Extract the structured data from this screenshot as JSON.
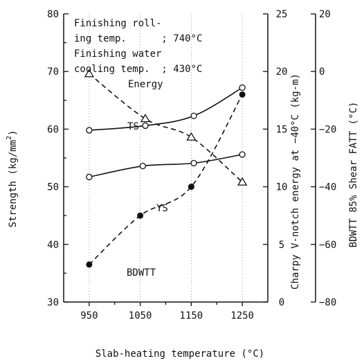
{
  "chart_data": {
    "type": "line",
    "xlabel": "Slab-heating temperature (°C)",
    "x_ticks": [
      "950",
      "1050",
      "1150",
      "1250"
    ],
    "xlim": [
      900,
      1300
    ],
    "left_axis": {
      "label": "Strength (kg/mm",
      "label_sup": "2",
      "label_end": ")",
      "ylim": [
        30,
        80
      ],
      "ticks": [
        "30",
        "40",
        "50",
        "60",
        "70",
        "80"
      ]
    },
    "mid_axis": {
      "label": "Charpy V-notch energy at −40°C (kg-m)",
      "ylim": [
        0,
        25
      ],
      "ticks": [
        "0",
        "5",
        "10",
        "15",
        "20",
        "25"
      ]
    },
    "right_axis": {
      "label": "BDWTT 85% Shear FATT (°C)",
      "ylim": [
        -80,
        20
      ],
      "ticks": [
        "−80",
        "−60",
        "−40",
        "−20",
        "0",
        "20"
      ]
    },
    "annotation": {
      "line1": "Finishing roll-",
      "line2": "ing temp.      ; 740°C",
      "line3": "Finishing water",
      "line4": "cooling temp.  ; 430°C"
    },
    "series": [
      {
        "name": "TS",
        "axis": "strength",
        "style": "solid",
        "marker": "open-circle",
        "x": [
          950,
          1060,
          1155,
          1250
        ],
        "y": [
          59.8,
          60.6,
          62.3,
          67.2
        ]
      },
      {
        "name": "YS",
        "axis": "strength",
        "style": "solid",
        "marker": "open-circle",
        "x": [
          950,
          1055,
          1155,
          1250
        ],
        "y": [
          51.7,
          53.6,
          54.1,
          55.6
        ]
      },
      {
        "name": "Energy",
        "axis": "energy",
        "style": "dashed",
        "marker": "open-triangle",
        "x": [
          950,
          1060,
          1150,
          1250
        ],
        "y": [
          19.8,
          15.9,
          14.3,
          10.4
        ]
      },
      {
        "name": "BDWTT",
        "axis": "fatt",
        "style": "dashed",
        "marker": "filled-circle",
        "x": [
          950,
          1050,
          1150,
          1250
        ],
        "y": [
          -67,
          -50,
          -40,
          -8
        ]
      }
    ],
    "grid": "dotted vertical at x ticks",
    "colors": {
      "ink": "#111111"
    }
  }
}
